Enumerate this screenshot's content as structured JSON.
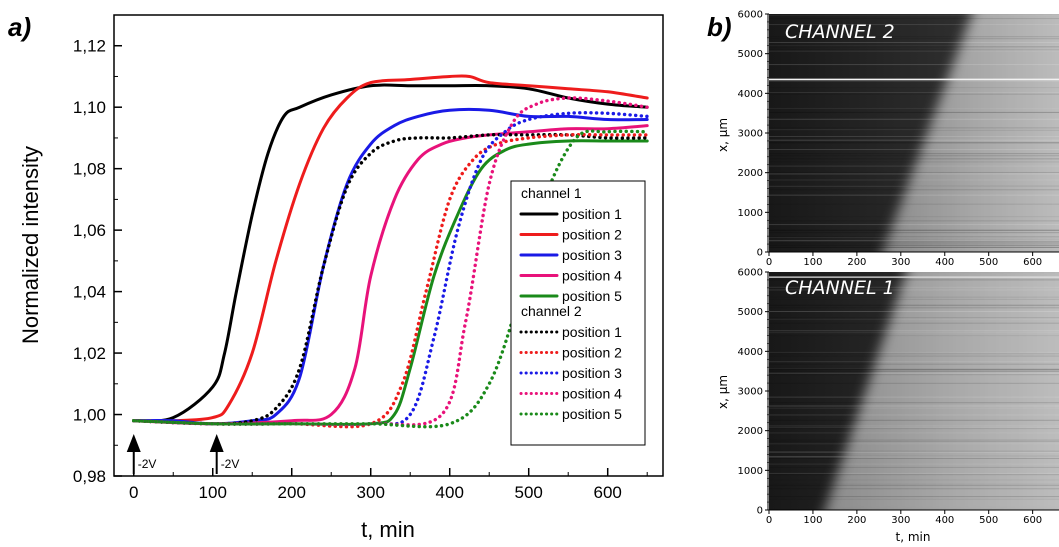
{
  "panel_a": {
    "label": "a)",
    "ylabel": "Normalized intensity",
    "xlabel": "t, min",
    "yticks": [
      "0,98",
      "1,00",
      "1,02",
      "1,04",
      "1,06",
      "1,08",
      "1,10",
      "1,12"
    ],
    "xticks": [
      "0",
      "100",
      "200",
      "300",
      "400",
      "500",
      "600"
    ],
    "annotations": [
      {
        "text": "-2V",
        "x": 0
      },
      {
        "text": "-2V",
        "x": 105
      }
    ],
    "legend": {
      "group1": "channel 1",
      "group2": "channel 2",
      "entries1": [
        "position 1",
        "position 2",
        "position 3",
        "position 4",
        "position 5"
      ],
      "entries2": [
        "position 1",
        "position 2",
        "position 3",
        "position 4",
        "position 5"
      ]
    }
  },
  "panel_b": {
    "label": "b)",
    "top_title": "CHANNEL 2",
    "bottom_title": "CHANNEL 1",
    "ylabel": "x, µm",
    "xlabel": "t, min",
    "yticks": [
      "0",
      "1000",
      "2000",
      "3000",
      "4000",
      "5000",
      "6000"
    ],
    "xticks": [
      "0",
      "100",
      "200",
      "300",
      "400",
      "500",
      "600"
    ]
  },
  "colors": {
    "black": "#000000",
    "red": "#ee1c1c",
    "blue": "#1a1ae6",
    "pink": "#e8127a",
    "green": "#1a8a1a"
  },
  "chart_data": [
    {
      "type": "line",
      "xlabel": "t, min",
      "ylabel": "Normalized intensity",
      "xlim": [
        -25,
        670
      ],
      "ylim": [
        0.98,
        1.13
      ],
      "grid": false,
      "legend_position": "right",
      "series": [
        {
          "name": "position 1",
          "group": "channel 1",
          "color": "#000000",
          "style": "solid",
          "x": [
            0,
            50,
            100,
            115,
            130,
            150,
            170,
            190,
            210,
            250,
            300,
            350,
            400,
            450,
            500,
            550,
            600,
            650
          ],
          "y": [
            0.998,
            0.999,
            1.009,
            1.02,
            1.04,
            1.065,
            1.085,
            1.097,
            1.1,
            1.104,
            1.107,
            1.107,
            1.107,
            1.107,
            1.106,
            1.103,
            1.101,
            1.1
          ]
        },
        {
          "name": "position 2",
          "group": "channel 1",
          "color": "#ee1c1c",
          "style": "solid",
          "x": [
            0,
            50,
            100,
            120,
            150,
            180,
            210,
            240,
            270,
            300,
            350,
            400,
            425,
            450,
            500,
            550,
            600,
            650
          ],
          "y": [
            0.998,
            0.998,
            0.999,
            1.003,
            1.02,
            1.05,
            1.075,
            1.093,
            1.103,
            1.108,
            1.109,
            1.11,
            1.11,
            1.108,
            1.107,
            1.106,
            1.105,
            1.103
          ]
        },
        {
          "name": "position 3",
          "group": "channel 1",
          "color": "#1a1ae6",
          "style": "solid",
          "x": [
            0,
            50,
            100,
            150,
            180,
            210,
            240,
            270,
            300,
            330,
            360,
            400,
            450,
            500,
            550,
            600,
            650
          ],
          "y": [
            0.998,
            0.998,
            0.997,
            0.998,
            1.0,
            1.012,
            1.048,
            1.075,
            1.088,
            1.094,
            1.097,
            1.099,
            1.099,
            1.097,
            1.097,
            1.096,
            1.096
          ]
        },
        {
          "name": "position 4",
          "group": "channel 1",
          "color": "#e8127a",
          "style": "solid",
          "x": [
            0,
            100,
            200,
            250,
            280,
            300,
            330,
            360,
            390,
            420,
            450,
            500,
            550,
            600,
            650
          ],
          "y": [
            0.998,
            0.997,
            0.998,
            1.0,
            1.015,
            1.045,
            1.07,
            1.083,
            1.088,
            1.09,
            1.091,
            1.092,
            1.093,
            1.093,
            1.094
          ]
        },
        {
          "name": "position 5",
          "group": "channel 1",
          "color": "#1a8a1a",
          "style": "solid",
          "x": [
            0,
            100,
            200,
            300,
            330,
            350,
            380,
            410,
            440,
            470,
            500,
            550,
            600,
            650
          ],
          "y": [
            0.998,
            0.997,
            0.997,
            0.997,
            1.0,
            1.015,
            1.045,
            1.065,
            1.08,
            1.086,
            1.088,
            1.089,
            1.089,
            1.089
          ]
        },
        {
          "name": "position 1",
          "group": "channel 2",
          "color": "#000000",
          "style": "dotted",
          "x": [
            0,
            100,
            150,
            180,
            210,
            240,
            270,
            300,
            330,
            360,
            400,
            450,
            500,
            550,
            600,
            650
          ],
          "y": [
            0.998,
            0.997,
            0.998,
            1.002,
            1.015,
            1.048,
            1.074,
            1.085,
            1.089,
            1.09,
            1.09,
            1.091,
            1.091,
            1.091,
            1.09,
            1.09
          ]
        },
        {
          "name": "position 2",
          "group": "channel 2",
          "color": "#ee1c1c",
          "style": "dotted",
          "x": [
            0,
            100,
            200,
            300,
            340,
            370,
            400,
            430,
            460,
            500,
            550,
            600,
            650
          ],
          "y": [
            0.998,
            0.997,
            0.997,
            0.997,
            1.01,
            1.04,
            1.07,
            1.083,
            1.088,
            1.09,
            1.091,
            1.091,
            1.091
          ]
        },
        {
          "name": "position 3",
          "group": "channel 2",
          "color": "#1a1ae6",
          "style": "dotted",
          "x": [
            0,
            100,
            200,
            300,
            350,
            380,
            410,
            440,
            470,
            500,
            550,
            600,
            650
          ],
          "y": [
            0.998,
            0.997,
            0.997,
            0.997,
            1.0,
            1.025,
            1.06,
            1.083,
            1.092,
            1.096,
            1.098,
            1.098,
            1.097
          ]
        },
        {
          "name": "position 4",
          "group": "channel 2",
          "color": "#e8127a",
          "style": "dotted",
          "x": [
            0,
            100,
            200,
            300,
            390,
            420,
            450,
            480,
            510,
            550,
            600,
            650
          ],
          "y": [
            0.998,
            0.997,
            0.997,
            0.997,
            1.0,
            1.03,
            1.075,
            1.095,
            1.101,
            1.103,
            1.102,
            1.1
          ]
        },
        {
          "name": "position 5",
          "group": "channel 2",
          "color": "#1a8a1a",
          "style": "dotted",
          "x": [
            0,
            100,
            200,
            300,
            400,
            450,
            490,
            520,
            560,
            600,
            650
          ],
          "y": [
            0.998,
            0.997,
            0.997,
            0.997,
            0.997,
            1.01,
            1.04,
            1.07,
            1.09,
            1.092,
            1.092
          ]
        }
      ]
    },
    {
      "type": "heatmap",
      "title": "CHANNEL 2",
      "xlabel": "",
      "ylabel": "x, µm",
      "xlim": [
        0,
        660
      ],
      "ylim": [
        0,
        6000
      ],
      "front": {
        "t_at_x0": 250,
        "t_at_x6000": 470
      },
      "bright_line_x": 4350
    },
    {
      "type": "heatmap",
      "title": "CHANNEL 1",
      "xlabel": "t, min",
      "ylabel": "x, µm",
      "xlim": [
        0,
        660
      ],
      "ylim": [
        0,
        6000
      ],
      "front": {
        "t_at_x0": 120,
        "t_at_x6000": 320
      },
      "bright_line_x": 5870
    }
  ]
}
